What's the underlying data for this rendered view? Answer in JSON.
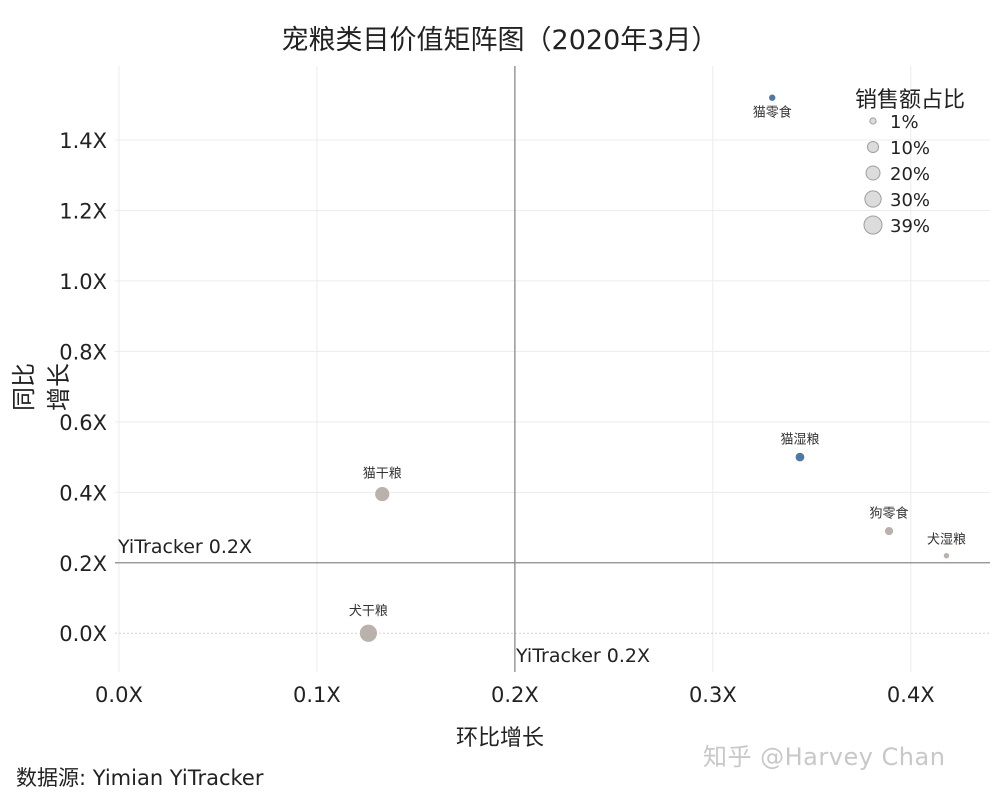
{
  "title": "宠粮类目价值矩阵图（2020年3月）",
  "source": "数据源: Yimian YiTracker",
  "watermark": "知乎 @Harvey Chan",
  "chart_data": {
    "type": "scatter",
    "title": "宠粮类目价值矩阵图（2020年3月）",
    "xlabel": "环比增长",
    "ylabel": "同比增长",
    "xlim": [
      -0.002,
      0.44
    ],
    "ylim": [
      -0.11,
      1.61
    ],
    "x_ticks": [
      {
        "value": 0.0,
        "label": "0.0X"
      },
      {
        "value": 0.1,
        "label": "0.1X"
      },
      {
        "value": 0.2,
        "label": "0.2X"
      },
      {
        "value": 0.3,
        "label": "0.3X"
      },
      {
        "value": 0.4,
        "label": "0.4X"
      }
    ],
    "y_ticks": [
      {
        "value": 0.0,
        "label": "0.0X"
      },
      {
        "value": 0.2,
        "label": "0.2X"
      },
      {
        "value": 0.4,
        "label": "0.4X"
      },
      {
        "value": 0.6,
        "label": "0.6X"
      },
      {
        "value": 0.8,
        "label": "0.8X"
      },
      {
        "value": 1.0,
        "label": "1.0X"
      },
      {
        "value": 1.2,
        "label": "1.2X"
      },
      {
        "value": 1.4,
        "label": "1.4X"
      }
    ],
    "grid": true,
    "reference_lines": {
      "x": {
        "value": 0.2,
        "label": "YiTracker 0.2X"
      },
      "y": {
        "value": 0.2,
        "label": "YiTracker 0.2X"
      }
    },
    "points": [
      {
        "label": "猫零食",
        "x": 0.33,
        "y": 1.52,
        "share": 2,
        "color": "#4e79a7"
      },
      {
        "label": "猫湿粮",
        "x": 0.344,
        "y": 0.5,
        "share": 6,
        "color": "#4e79a7"
      },
      {
        "label": "猫干粮",
        "x": 0.133,
        "y": 0.395,
        "share": 24,
        "color": "#bab0ac"
      },
      {
        "label": "犬干粮",
        "x": 0.126,
        "y": 0.0,
        "share": 39,
        "color": "#bab0ac"
      },
      {
        "label": "狗零食",
        "x": 0.389,
        "y": 0.29,
        "share": 5,
        "color": "#bab0ac"
      },
      {
        "label": "犬湿粮",
        "x": 0.418,
        "y": 0.22,
        "share": 1,
        "color": "#bab0ac"
      }
    ],
    "size_legend": {
      "title": "销售额占比",
      "placement": "top-right",
      "entries": [
        {
          "label": "1%",
          "value": 1
        },
        {
          "label": "10%",
          "value": 10
        },
        {
          "label": "20%",
          "value": 20
        },
        {
          "label": "30%",
          "value": 30
        },
        {
          "label": "39%",
          "value": 39
        }
      ]
    }
  }
}
